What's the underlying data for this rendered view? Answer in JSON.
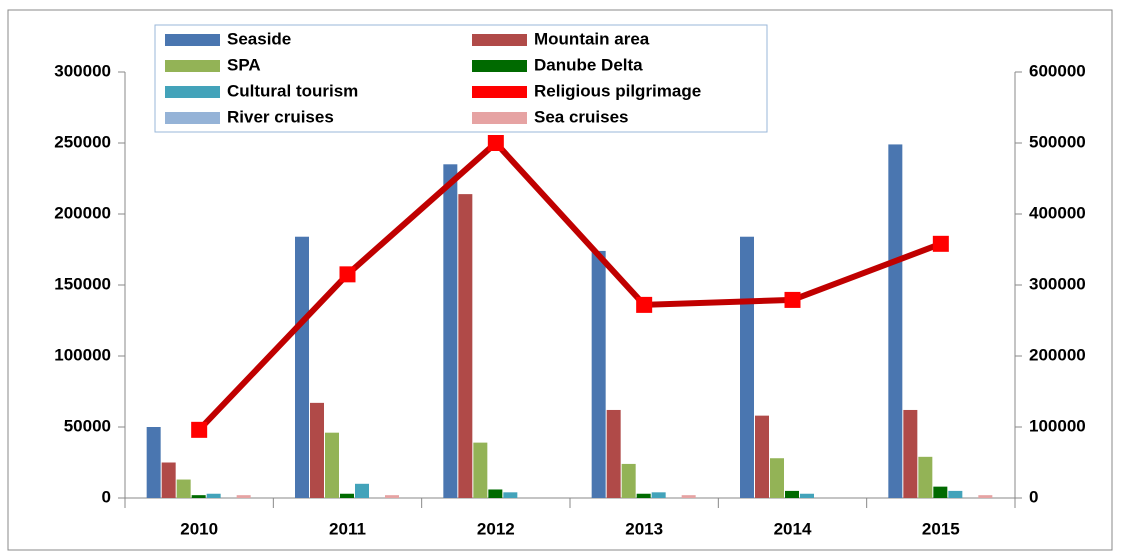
{
  "chart_data": {
    "type": "bar",
    "categories": [
      "2010",
      "2011",
      "2012",
      "2013",
      "2014",
      "2015"
    ],
    "series": [
      {
        "name": "Seaside",
        "color": "#4a76b0",
        "values": [
          50000,
          184000,
          235000,
          174000,
          184000,
          249000
        ]
      },
      {
        "name": "Mountain area",
        "color": "#b04a48",
        "values": [
          25000,
          67000,
          214000,
          62000,
          58000,
          62000
        ]
      },
      {
        "name": "SPA",
        "color": "#93b356",
        "values": [
          13000,
          46000,
          39000,
          24000,
          28000,
          29000
        ]
      },
      {
        "name": "Danube Delta",
        "color": "#006a00",
        "values": [
          2000,
          3000,
          6000,
          3000,
          5000,
          8000
        ]
      },
      {
        "name": "Cultural tourism",
        "color": "#43a3ba",
        "values": [
          3000,
          10000,
          4000,
          4000,
          3000,
          5000
        ]
      },
      {
        "name": "Religious pilgrimage",
        "color": "#ff0000",
        "line_color": "#c00000",
        "axis": "y2",
        "values": [
          96000,
          315000,
          500000,
          272000,
          279000,
          358000
        ]
      },
      {
        "name": "River cruises",
        "color": "#95b3d7",
        "values": [
          0,
          0,
          0,
          0,
          0,
          0
        ]
      },
      {
        "name": "Sea cruises",
        "color": "#e6a3a3",
        "values": [
          2000,
          2000,
          0,
          2000,
          0,
          2000
        ]
      }
    ],
    "ylim": [
      0,
      300000
    ],
    "yticks": [
      0,
      50000,
      100000,
      150000,
      200000,
      250000,
      300000
    ],
    "y2lim": [
      0,
      600000
    ],
    "y2ticks": [
      0,
      100000,
      200000,
      300000,
      400000,
      500000,
      600000
    ]
  }
}
